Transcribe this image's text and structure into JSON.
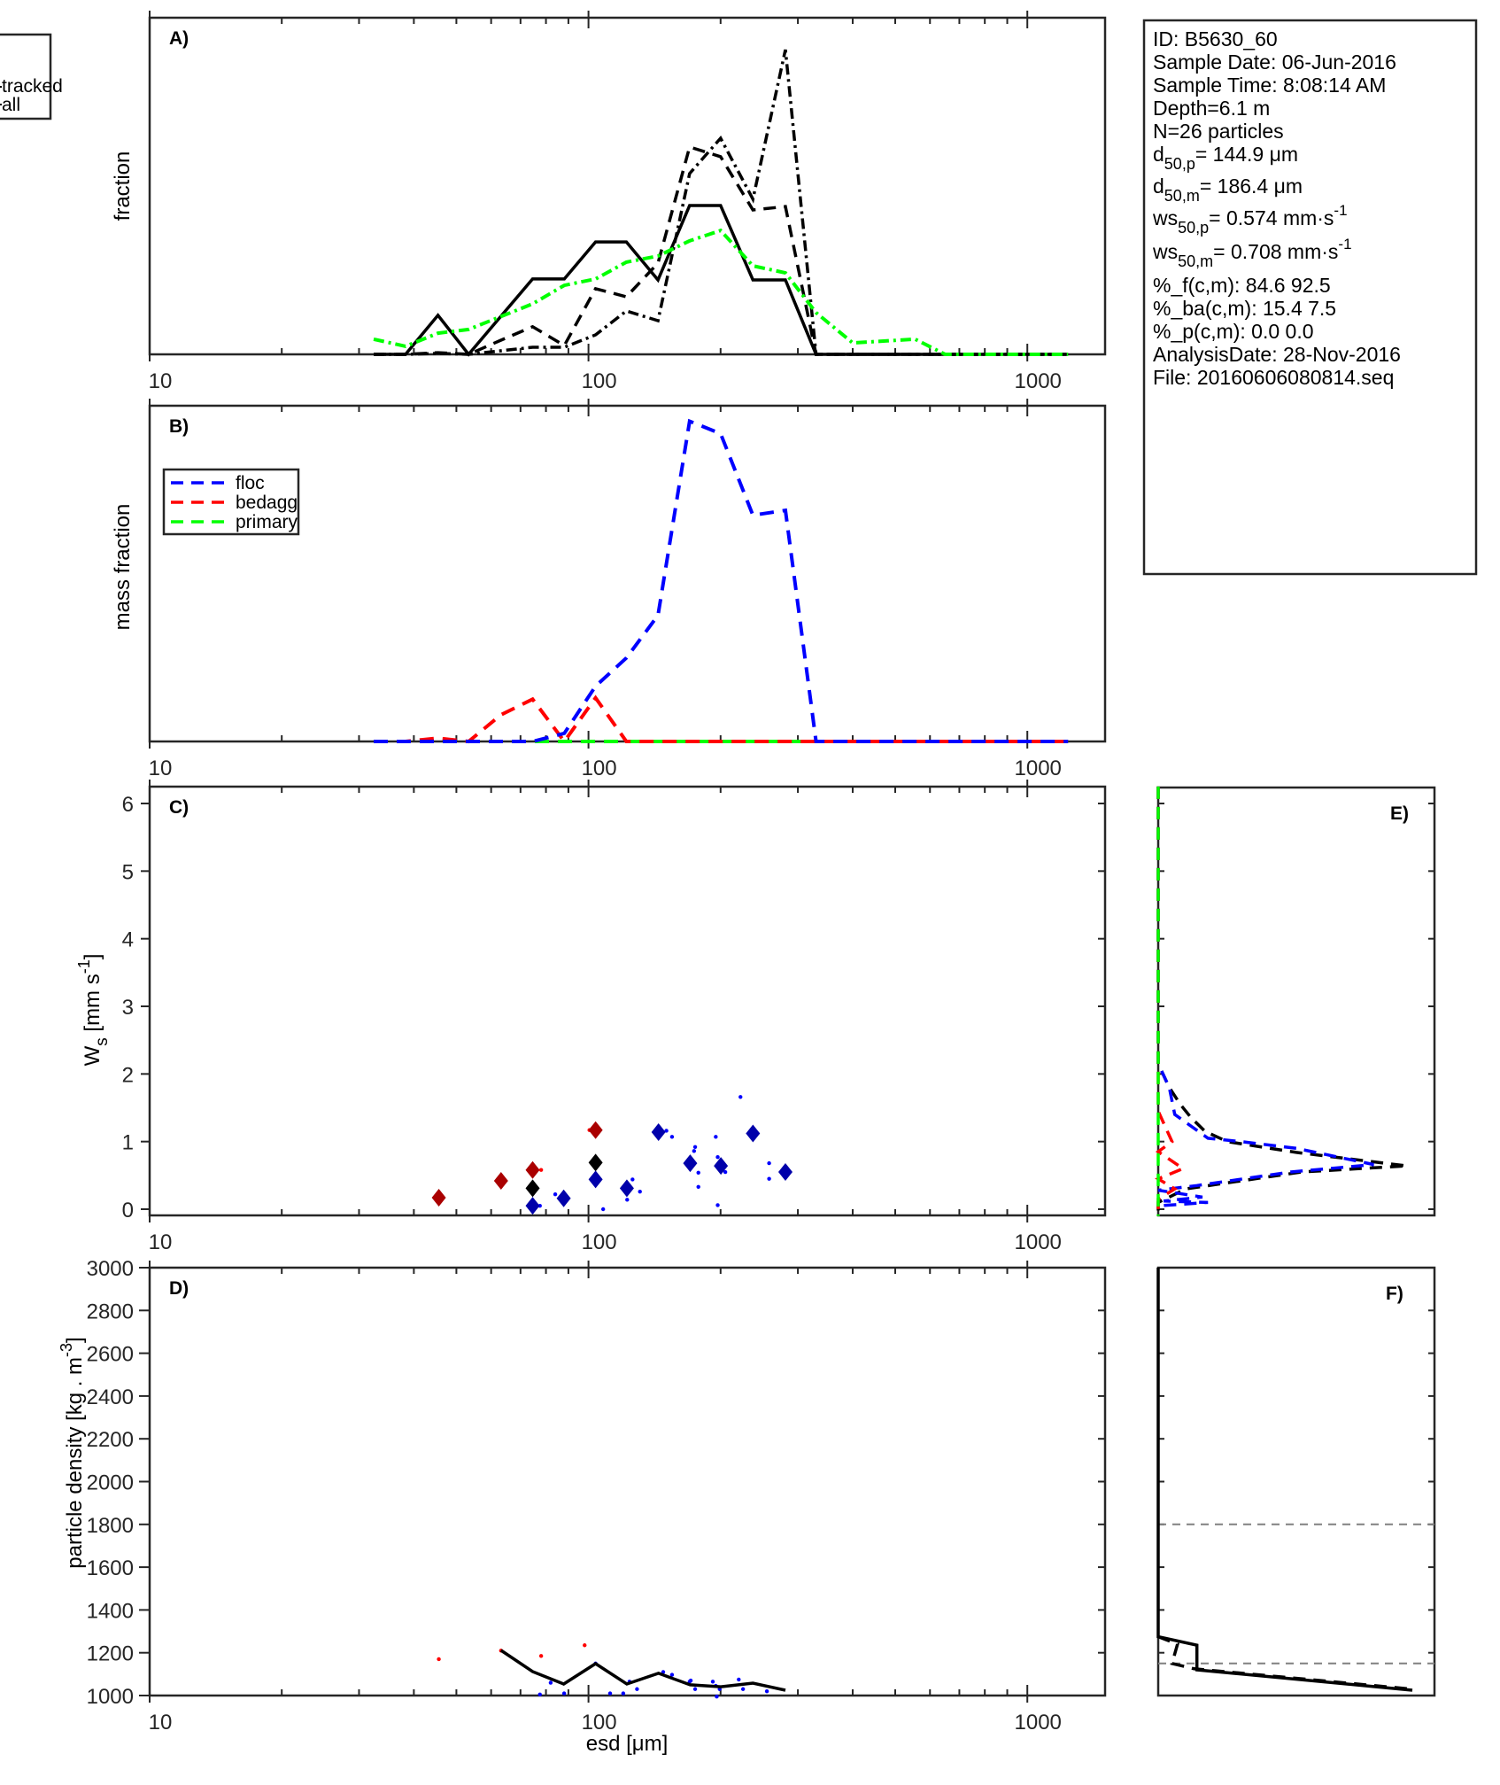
{
  "colors": {
    "black": "#000000",
    "green": "#00ff00",
    "blue": "#0000ff",
    "red": "#ff0000",
    "dark_red": "#aa0000",
    "dark_blue": "#0000aa",
    "gray": "#808080",
    "axis": "#262626"
  },
  "top_legend": {
    "items": [
      "tracked",
      "all"
    ]
  },
  "info_box": {
    "lines": [
      {
        "text": "ID: B5630_60"
      },
      {
        "text": "Sample Date: 06-Jun-2016"
      },
      {
        "text": "Sample Time:  8:08:14 AM"
      },
      {
        "text": "Depth=6.1 m"
      },
      {
        "text": "N=26 particles"
      },
      {
        "base": "d",
        "sub": "50,p",
        "rest": "= 144.9 μm"
      },
      {
        "base": "d",
        "sub": "50,m",
        "rest": "= 186.4 μm"
      },
      {
        "base": "ws",
        "sub": "50,p",
        "rest": "= 0.574 mm·s",
        "sup": "-1"
      },
      {
        "base": "ws",
        "sub": "50,m",
        "rest": "= 0.708 mm·s",
        "sup": "-1"
      },
      {
        "text": "%_f(c,m): 84.6 92.5"
      },
      {
        "text": "%_ba(c,m): 15.4 7.5"
      },
      {
        "text": "%_p(c,m): 0.0 0.0"
      },
      {
        "text": "AnalysisDate: 28-Nov-2016"
      },
      {
        "text": "File: 20160606080814.seq"
      }
    ]
  },
  "chart_data": [
    {
      "id": "A",
      "type": "line",
      "panel_label": "A)",
      "xlabel": "",
      "ylabel": "fraction",
      "xscale": "log",
      "xlim": [
        10,
        1500
      ],
      "ylim": [
        0,
        1
      ],
      "xticks": [
        10,
        100,
        1000
      ],
      "xtick_labels": [
        "10",
        "100",
        "1000"
      ],
      "series": [
        {
          "name": "solid",
          "style": "solid",
          "color": "black",
          "x": [
            32.4,
            38.3,
            45.4,
            53.3,
            74.6,
            88.1,
            103.8,
            122,
            144,
            170,
            200,
            237,
            281,
            330,
            400,
            500,
            650,
            800,
            1000,
            1238
          ],
          "y": [
            0,
            0,
            0.116,
            0,
            0.224,
            0.224,
            0.334,
            0.334,
            0.221,
            0.442,
            0.442,
            0.221,
            0.221,
            0,
            0,
            0,
            0,
            0,
            0,
            0
          ]
        },
        {
          "name": "dashed",
          "style": "dashed",
          "color": "black",
          "x": [
            32.4,
            38.3,
            45.4,
            53.3,
            63.2,
            74.6,
            88.1,
            103.8,
            122,
            144,
            170,
            200,
            237,
            281,
            330,
            1238
          ],
          "y": [
            0,
            0,
            0.005,
            0,
            0.042,
            0.082,
            0.026,
            0.195,
            0.171,
            0.271,
            0.616,
            0.587,
            0.429,
            0.439,
            0,
            0
          ]
        },
        {
          "name": "dashdot",
          "style": "dashdot",
          "color": "black",
          "x": [
            32.4,
            38.3,
            45.4,
            53.3,
            74.6,
            88.1,
            103.8,
            122,
            144,
            170,
            200,
            237,
            281,
            330,
            1238
          ],
          "y": [
            0,
            0,
            0.003,
            0,
            0.021,
            0.021,
            0.058,
            0.129,
            0.1,
            0.537,
            0.642,
            0.461,
            0.905,
            0,
            0
          ]
        },
        {
          "name": "green",
          "style": "dashdot",
          "color": "green",
          "x": [
            32.4,
            38.3,
            45.4,
            53.3,
            74.6,
            88.1,
            103.8,
            122,
            144,
            170,
            200,
            237,
            281,
            330,
            400,
            555,
            650,
            1238
          ],
          "y": [
            0.045,
            0.024,
            0.063,
            0.074,
            0.15,
            0.205,
            0.224,
            0.274,
            0.292,
            0.337,
            0.368,
            0.263,
            0.242,
            0.124,
            0.034,
            0.045,
            0,
            0
          ]
        }
      ]
    },
    {
      "id": "B",
      "type": "line",
      "panel_label": "B)",
      "xlabel": "",
      "ylabel": "mass fraction",
      "xscale": "log",
      "xlim": [
        10,
        1500
      ],
      "ylim": [
        0,
        1
      ],
      "xticks": [
        10,
        100,
        1000
      ],
      "xtick_labels": [
        "10",
        "100",
        "1000"
      ],
      "legend": {
        "position": "upper-left",
        "entries": [
          "floc",
          "bedagg",
          "primary"
        ]
      },
      "series": [
        {
          "name": "floc",
          "color": "blue",
          "x": [
            32.4,
            38.3,
            45.4,
            53.3,
            63.2,
            74.6,
            88.1,
            103.8,
            122,
            144,
            170,
            200,
            237,
            281,
            330,
            1238
          ],
          "y": [
            0,
            0,
            0,
            0,
            0,
            0,
            0.025,
            0.17,
            0.257,
            0.388,
            0.985,
            0.947,
            0.696,
            0.711,
            0,
            0
          ]
        },
        {
          "name": "bedagg",
          "color": "red",
          "x": [
            32.4,
            38.3,
            45.4,
            53.3,
            63.2,
            74.6,
            88.1,
            103.8,
            122,
            1238
          ],
          "y": [
            0,
            0,
            0.01,
            0,
            0.082,
            0.13,
            0,
            0.134,
            0,
            0
          ]
        },
        {
          "name": "primary",
          "color": "green",
          "x": [
            32.4,
            1238
          ],
          "y": [
            0,
            0
          ]
        }
      ]
    },
    {
      "id": "C",
      "type": "scatter",
      "panel_label": "C)",
      "xlabel": "",
      "ylabel_base": "W",
      "ylabel_sub": "s",
      "ylabel_rest": " [mm s",
      "ylabel_sup": "-1",
      "ylabel_end": "]",
      "xscale": "log",
      "xlim": [
        10,
        1500
      ],
      "ylim": [
        -0.1,
        6.25
      ],
      "xticks": [
        10,
        100,
        1000
      ],
      "xtick_labels": [
        "10",
        "100",
        "1000"
      ],
      "yticks": [
        0,
        1,
        2,
        3,
        4,
        5,
        6
      ],
      "ytick_labels": [
        "0",
        "1",
        "2",
        "3",
        "4",
        "5",
        "6"
      ],
      "diamonds": [
        {
          "x": 45.6,
          "y": 0.17,
          "color": "dark_red"
        },
        {
          "x": 63.2,
          "y": 0.42,
          "color": "dark_red"
        },
        {
          "x": 74.6,
          "y": 0.58,
          "color": "dark_red"
        },
        {
          "x": 74.6,
          "y": 0.31,
          "color": "black"
        },
        {
          "x": 74.6,
          "y": 0.05,
          "color": "dark_blue"
        },
        {
          "x": 87.8,
          "y": 0.16,
          "color": "dark_blue"
        },
        {
          "x": 103.8,
          "y": 1.17,
          "color": "dark_red"
        },
        {
          "x": 103.8,
          "y": 0.69,
          "color": "black"
        },
        {
          "x": 103.8,
          "y": 0.44,
          "color": "dark_blue"
        },
        {
          "x": 122.3,
          "y": 0.31,
          "color": "dark_blue"
        },
        {
          "x": 144.4,
          "y": 1.14,
          "color": "dark_blue"
        },
        {
          "x": 170.5,
          "y": 0.68,
          "color": "dark_blue"
        },
        {
          "x": 200.3,
          "y": 0.64,
          "color": "dark_blue"
        },
        {
          "x": 237,
          "y": 1.12,
          "color": "dark_blue"
        },
        {
          "x": 281,
          "y": 0.55,
          "color": "dark_blue"
        }
      ],
      "dots": [
        {
          "x": 78,
          "y": 0.58,
          "color": "red"
        },
        {
          "x": 100.5,
          "y": 1.17,
          "color": "red"
        },
        {
          "x": 77.5,
          "y": 0.05,
          "color": "blue"
        },
        {
          "x": 84,
          "y": 0.22,
          "color": "blue"
        },
        {
          "x": 108,
          "y": 0.0,
          "color": "blue"
        },
        {
          "x": 126,
          "y": 0.44,
          "color": "blue"
        },
        {
          "x": 122.5,
          "y": 0.14,
          "color": "blue"
        },
        {
          "x": 131,
          "y": 0.26,
          "color": "blue"
        },
        {
          "x": 150.5,
          "y": 1.16,
          "color": "blue"
        },
        {
          "x": 155,
          "y": 1.07,
          "color": "blue"
        },
        {
          "x": 175,
          "y": 0.92,
          "color": "blue"
        },
        {
          "x": 174,
          "y": 0.86,
          "color": "blue"
        },
        {
          "x": 178,
          "y": 0.54,
          "color": "blue"
        },
        {
          "x": 178,
          "y": 0.33,
          "color": "blue"
        },
        {
          "x": 195,
          "y": 1.07,
          "color": "blue"
        },
        {
          "x": 197,
          "y": 0.77,
          "color": "blue"
        },
        {
          "x": 197,
          "y": 0.06,
          "color": "blue"
        },
        {
          "x": 222,
          "y": 1.66,
          "color": "blue"
        },
        {
          "x": 205,
          "y": 0.55,
          "color": "blue"
        },
        {
          "x": 258,
          "y": 0.68,
          "color": "blue"
        },
        {
          "x": 258,
          "y": 0.45,
          "color": "blue"
        }
      ]
    },
    {
      "id": "D",
      "type": "line",
      "panel_label": "D)",
      "xlabel": "esd [μm]",
      "ylabel": "particle density [kg . m",
      "ylabel_sup": "-3",
      "ylabel_end": "]",
      "xscale": "log",
      "xlim": [
        10,
        1500
      ],
      "ylim": [
        1000,
        3000
      ],
      "xticks": [
        10,
        100,
        1000
      ],
      "xtick_labels": [
        "10",
        "100",
        "1000"
      ],
      "yticks": [
        1000,
        1200,
        1400,
        1600,
        1800,
        2000,
        2200,
        2400,
        2600,
        2800,
        3000
      ],
      "ytick_labels": [
        "1000",
        "1200",
        "1400",
        "1600",
        "1800",
        "2000",
        "2200",
        "2400",
        "2600",
        "2800",
        "3000"
      ],
      "line": {
        "x": [
          63.2,
          74.6,
          87.8,
          103.8,
          122.3,
          144.4,
          170.5,
          200.3,
          237,
          281
        ],
        "y": [
          1211,
          1112,
          1054,
          1149,
          1054,
          1104,
          1050,
          1041,
          1058,
          1025
        ]
      },
      "dots": [
        {
          "x": 45.6,
          "y": 1170,
          "color": "red"
        },
        {
          "x": 63.2,
          "y": 1210,
          "color": "red"
        },
        {
          "x": 78,
          "y": 1185,
          "color": "red"
        },
        {
          "x": 98,
          "y": 1235,
          "color": "red"
        },
        {
          "x": 77.5,
          "y": 1005,
          "color": "blue"
        },
        {
          "x": 82,
          "y": 1060,
          "color": "blue"
        },
        {
          "x": 88,
          "y": 1010,
          "color": "blue"
        },
        {
          "x": 103.8,
          "y": 1150,
          "color": "blue"
        },
        {
          "x": 112,
          "y": 1010,
          "color": "blue"
        },
        {
          "x": 120,
          "y": 1010,
          "color": "blue"
        },
        {
          "x": 124,
          "y": 1065,
          "color": "blue"
        },
        {
          "x": 129,
          "y": 1030,
          "color": "blue"
        },
        {
          "x": 148,
          "y": 1110,
          "color": "blue"
        },
        {
          "x": 155,
          "y": 1097,
          "color": "blue"
        },
        {
          "x": 170,
          "y": 1065,
          "color": "blue"
        },
        {
          "x": 171,
          "y": 1070,
          "color": "blue"
        },
        {
          "x": 175,
          "y": 1030,
          "color": "blue"
        },
        {
          "x": 192,
          "y": 1065,
          "color": "blue"
        },
        {
          "x": 195,
          "y": 1045,
          "color": "blue"
        },
        {
          "x": 196,
          "y": 995,
          "color": "blue"
        },
        {
          "x": 199,
          "y": 1030,
          "color": "blue"
        },
        {
          "x": 220,
          "y": 1075,
          "color": "blue"
        },
        {
          "x": 225,
          "y": 1030,
          "color": "blue"
        },
        {
          "x": 255,
          "y": 1020,
          "color": "blue"
        }
      ]
    },
    {
      "id": "E",
      "type": "line",
      "panel_label": "E)",
      "orientation": "horizontal-profile",
      "ylim": [
        -0.1,
        6.25
      ],
      "xlim": [
        0,
        1
      ],
      "yticks": [
        0,
        1,
        2,
        3,
        4,
        5,
        6
      ],
      "series": [
        {
          "name": "all",
          "color": "black",
          "style": "dashed",
          "x": [
            0,
            0,
            0.04,
            0.08,
            0.12,
            0.17,
            0.25,
            0.5,
            0.9,
            0.52,
            0.1,
            0,
            0
          ],
          "y": [
            6.25,
            2.15,
            1.8,
            1.55,
            1.35,
            1.15,
            1.0,
            0.84,
            0.64,
            0.55,
            0.3,
            0.1,
            -0.1
          ]
        },
        {
          "name": "floc",
          "color": "blue",
          "style": "dashed",
          "x": [
            0,
            0,
            0.04,
            0.06,
            0.18,
            0.3,
            0.5,
            0.78,
            0.48,
            0.14,
            0,
            0.16,
            0.02,
            0.18,
            0
          ],
          "y": [
            6.25,
            2.15,
            1.8,
            1.4,
            1.05,
            1.0,
            0.9,
            0.66,
            0.55,
            0.35,
            0.28,
            0.18,
            0.12,
            0.1,
            0.05
          ]
        },
        {
          "name": "bedagg",
          "color": "red",
          "style": "dashed",
          "x": [
            0,
            0,
            0.05,
            0,
            0.09,
            0,
            0.06,
            0,
            0
          ],
          "y": [
            6.25,
            1.45,
            1.0,
            0.85,
            0.6,
            0.45,
            0.3,
            0.15,
            -0.1
          ]
        },
        {
          "name": "primary",
          "color": "green",
          "style": "dashed",
          "x": [
            0,
            0
          ],
          "y": [
            6.25,
            -0.1
          ]
        }
      ]
    },
    {
      "id": "F",
      "type": "line",
      "panel_label": "F)",
      "orientation": "horizontal-profile",
      "ylim": [
        1000,
        3000
      ],
      "xlim": [
        0,
        1
      ],
      "yticks": [
        1000,
        1200,
        1400,
        1600,
        1800,
        2000,
        2200,
        2400,
        2600,
        2800,
        3000
      ],
      "reference_lines": [
        1800,
        1150
      ],
      "series": [
        {
          "name": "solid",
          "color": "black",
          "style": "solid",
          "x": [
            0,
            0,
            0.14,
            0.14,
            0.92
          ],
          "y": [
            3000,
            1275,
            1235,
            1120,
            1025
          ]
        },
        {
          "name": "dashed",
          "color": "black",
          "style": "dashed",
          "x": [
            0.0,
            0.07,
            0.05,
            0.13,
            0.92
          ],
          "y": [
            1275,
            1240,
            1150,
            1125,
            1030
          ]
        }
      ]
    }
  ]
}
